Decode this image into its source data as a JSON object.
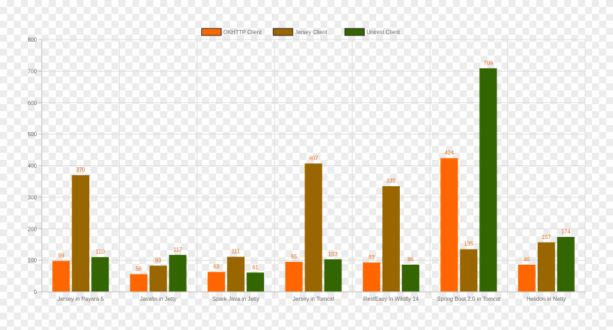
{
  "chart_data": {
    "type": "bar",
    "categories": [
      "Jersey in Payara 5",
      "Javalin in Jetty",
      "Spark Java in Jetty",
      "Jersey in Tomcat",
      "RestEasy in Wildfly 14",
      "Spring Boot 2.0 in Tomcat",
      "Helidon in Netty"
    ],
    "series": [
      {
        "name": "OKHTTP Client",
        "color": "#ff6600",
        "values": [
          98,
          56,
          63,
          95,
          93,
          424,
          86
        ]
      },
      {
        "name": "Jersey Client",
        "color": "#996600",
        "values": [
          370,
          83,
          111,
          407,
          335,
          135,
          157
        ]
      },
      {
        "name": "Unirest Client",
        "color": "#336600",
        "values": [
          110,
          117,
          61,
          103,
          86,
          709,
          174
        ]
      }
    ],
    "yticks": [
      0,
      100,
      200,
      300,
      400,
      500,
      600,
      700,
      800
    ],
    "ylim": [
      0,
      800
    ],
    "grid": true,
    "legend_position": "top-center",
    "data_label_color": "#e06a18"
  }
}
